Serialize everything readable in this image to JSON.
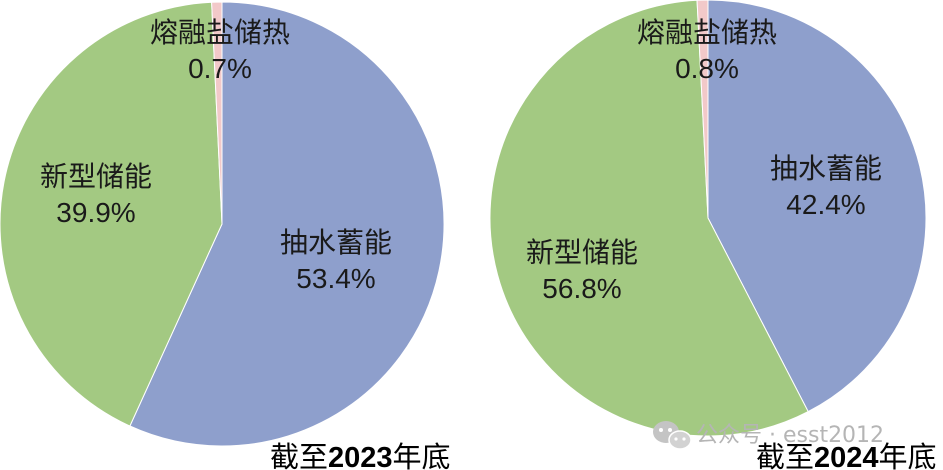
{
  "chart_data": [
    {
      "type": "pie",
      "caption_prefix": "截至",
      "caption_year": "2023",
      "caption_suffix": "年底",
      "slices": [
        {
          "label": "抽水蓄能",
          "value": 53.4,
          "pct_label": "53.4%",
          "color": "#8e9fcc"
        },
        {
          "label": "新型储能",
          "value": 39.9,
          "pct_label": "39.9%",
          "color": "#a3c982"
        },
        {
          "label": "熔融盐储热",
          "value": 0.7,
          "pct_label": "0.7%",
          "color": "#f2c9c9"
        }
      ]
    },
    {
      "type": "pie",
      "caption_prefix": "截至",
      "caption_year": "2024",
      "caption_suffix": "年底",
      "slices": [
        {
          "label": "抽水蓄能",
          "value": 42.4,
          "pct_label": "42.4%",
          "color": "#8e9fcc"
        },
        {
          "label": "新型储能",
          "value": 56.8,
          "pct_label": "56.8%",
          "color": "#a3c982"
        },
        {
          "label": "熔融盐储热",
          "value": 0.8,
          "pct_label": "0.8%",
          "color": "#f2c9c9"
        }
      ]
    }
  ],
  "watermark": {
    "text": "公众号 · esst2012",
    "icon": "wechat-icon"
  }
}
